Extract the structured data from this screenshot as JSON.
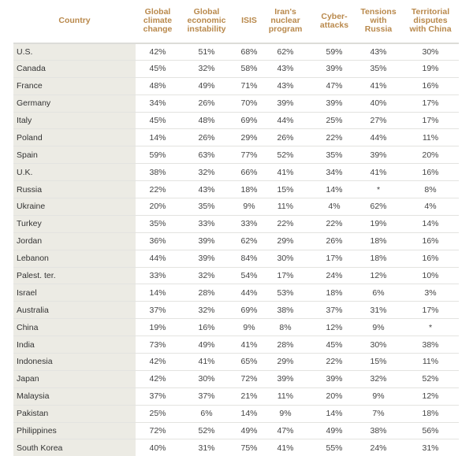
{
  "table": {
    "headers": [
      "Country",
      "Global climate change",
      "Global economic instability",
      "ISIS",
      "Iran's nuclear program",
      "Cyber-attacks",
      "Tensions with Russia",
      "Territorial disputes with China"
    ],
    "header_color": "#b9894c",
    "rows": [
      [
        "U.S.",
        "42%",
        "51%",
        "68%",
        "62%",
        "59%",
        "43%",
        "30%"
      ],
      [
        "Canada",
        "45%",
        "32%",
        "58%",
        "43%",
        "39%",
        "35%",
        "19%"
      ],
      [
        "France",
        "48%",
        "49%",
        "71%",
        "43%",
        "47%",
        "41%",
        "16%"
      ],
      [
        "Germany",
        "34%",
        "26%",
        "70%",
        "39%",
        "39%",
        "40%",
        "17%"
      ],
      [
        "Italy",
        "45%",
        "48%",
        "69%",
        "44%",
        "25%",
        "27%",
        "17%"
      ],
      [
        "Poland",
        "14%",
        "26%",
        "29%",
        "26%",
        "22%",
        "44%",
        "11%"
      ],
      [
        "Spain",
        "59%",
        "63%",
        "77%",
        "52%",
        "35%",
        "39%",
        "20%"
      ],
      [
        "U.K.",
        "38%",
        "32%",
        "66%",
        "41%",
        "34%",
        "41%",
        "16%"
      ],
      [
        "Russia",
        "22%",
        "43%",
        "18%",
        "15%",
        "14%",
        "*",
        "8%"
      ],
      [
        "Ukraine",
        "20%",
        "35%",
        "9%",
        "11%",
        "4%",
        "62%",
        "4%"
      ],
      [
        "Turkey",
        "35%",
        "33%",
        "33%",
        "22%",
        "22%",
        "19%",
        "14%"
      ],
      [
        "Jordan",
        "36%",
        "39%",
        "62%",
        "29%",
        "26%",
        "18%",
        "16%"
      ],
      [
        "Lebanon",
        "44%",
        "39%",
        "84%",
        "30%",
        "17%",
        "18%",
        "16%"
      ],
      [
        "Palest. ter.",
        "33%",
        "32%",
        "54%",
        "17%",
        "24%",
        "12%",
        "10%"
      ],
      [
        "Israel",
        "14%",
        "28%",
        "44%",
        "53%",
        "18%",
        "6%",
        "3%"
      ],
      [
        "Australia",
        "37%",
        "32%",
        "69%",
        "38%",
        "37%",
        "31%",
        "17%"
      ],
      [
        "China",
        "19%",
        "16%",
        "9%",
        "8%",
        "12%",
        "9%",
        "*"
      ],
      [
        "India",
        "73%",
        "49%",
        "41%",
        "28%",
        "45%",
        "30%",
        "38%"
      ],
      [
        "Indonesia",
        "42%",
        "41%",
        "65%",
        "29%",
        "22%",
        "15%",
        "11%"
      ],
      [
        "Japan",
        "42%",
        "30%",
        "72%",
        "39%",
        "39%",
        "32%",
        "52%"
      ],
      [
        "Malaysia",
        "37%",
        "37%",
        "21%",
        "11%",
        "20%",
        "9%",
        "12%"
      ],
      [
        "Pakistan",
        "25%",
        "6%",
        "14%",
        "9%",
        "14%",
        "7%",
        "18%"
      ],
      [
        "Philippines",
        "72%",
        "52%",
        "49%",
        "47%",
        "49%",
        "38%",
        "56%"
      ],
      [
        "South Korea",
        "40%",
        "31%",
        "75%",
        "41%",
        "55%",
        "24%",
        "31%"
      ]
    ]
  }
}
